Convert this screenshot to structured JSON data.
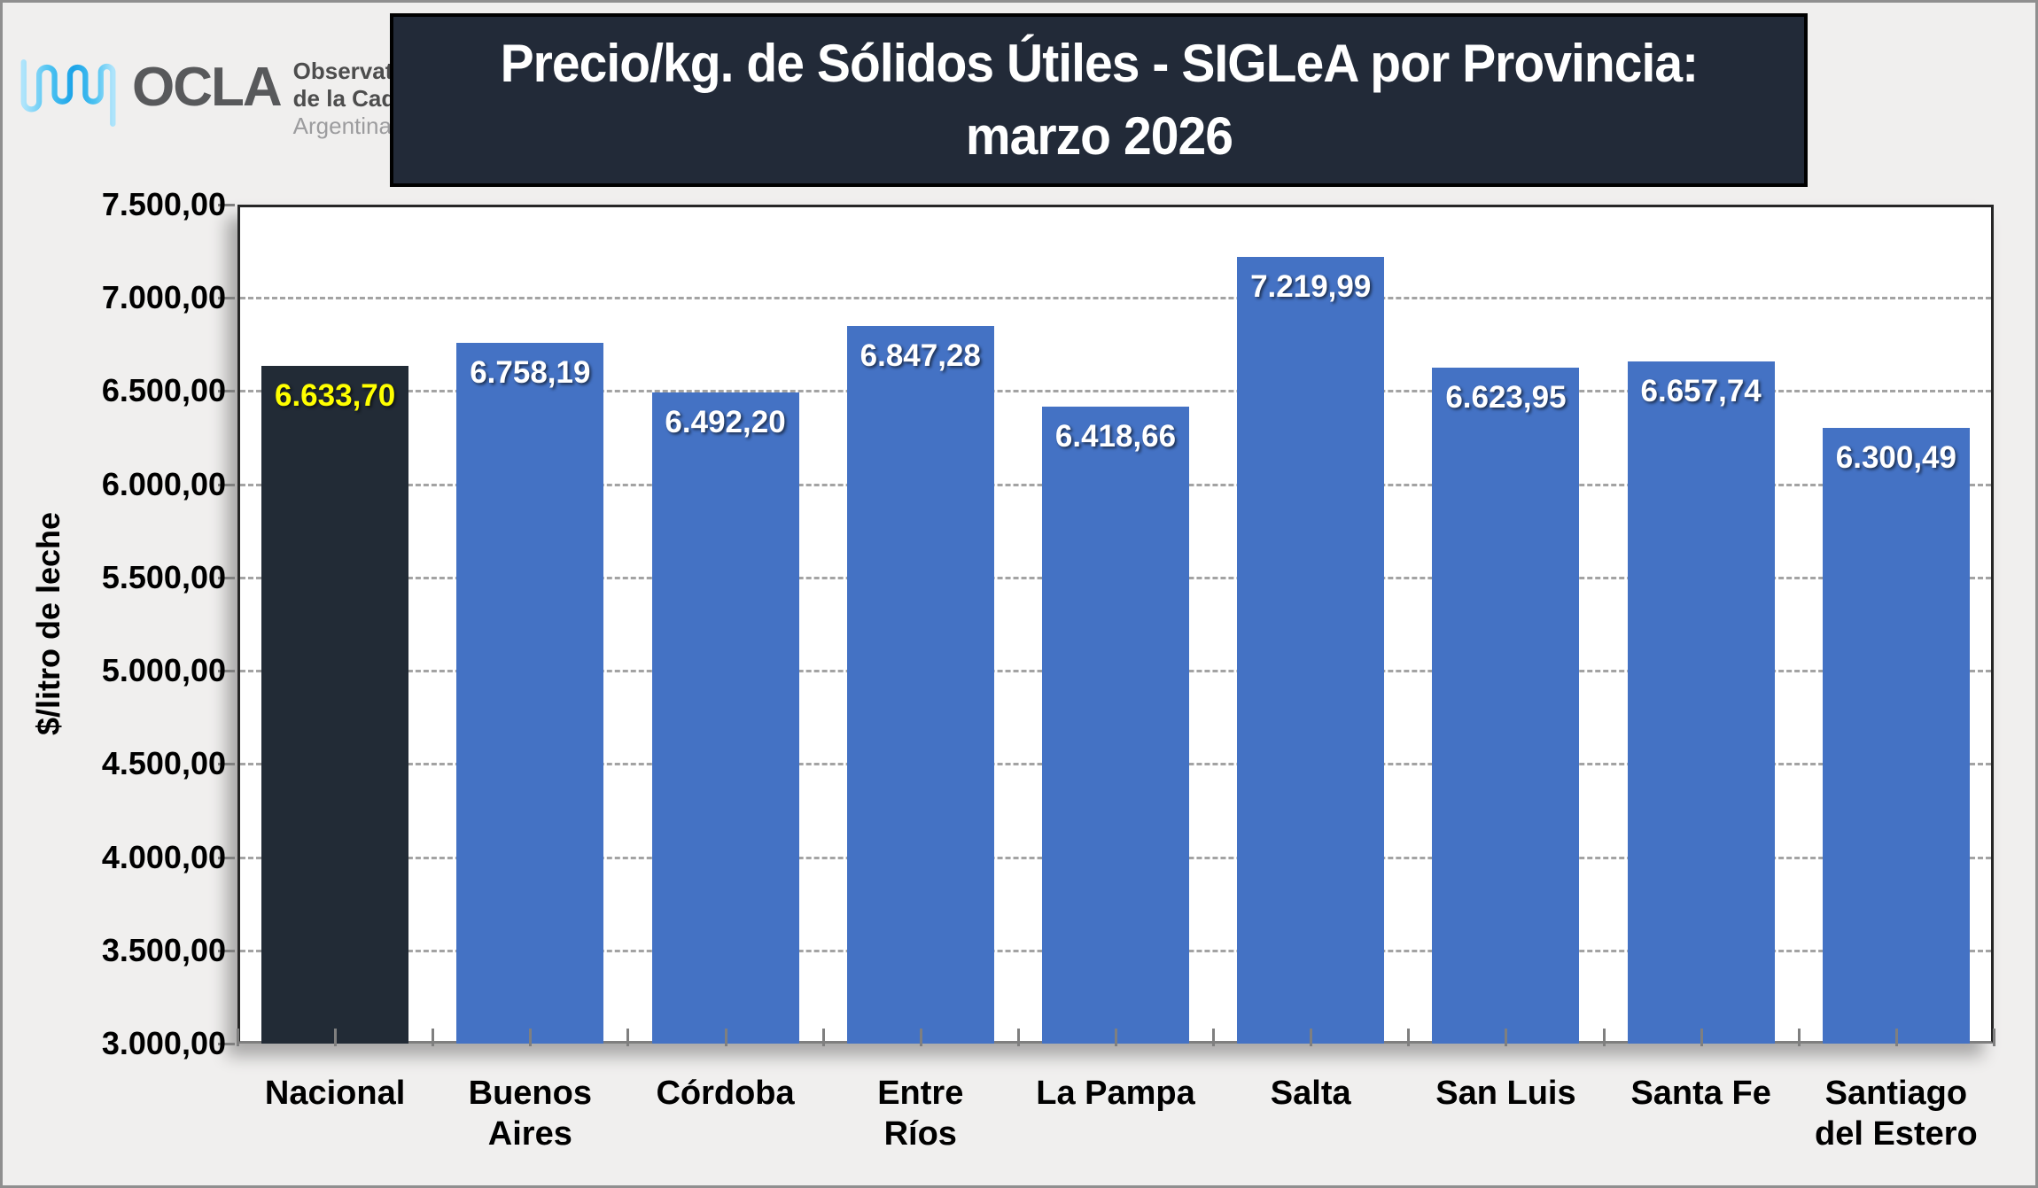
{
  "logo": {
    "brand": "OCLA",
    "icon": "milk-wave-icon",
    "tagline_line1": "Observatorio",
    "tagline_line2": "de la Cadena Láctea",
    "tagline_line3": "Argentina"
  },
  "title": {
    "line1": "Precio/kg. de Sólidos Útiles - SIGLeA por Provincia:",
    "line2": "marzo 2026",
    "bg_color": "#222a38",
    "text_color": "#ffffff"
  },
  "chart_data": {
    "type": "bar",
    "title": "Precio/kg. de Sólidos Útiles - SIGLeA por Provincia: marzo 2026",
    "xlabel": "",
    "ylabel": "$/litro de leche",
    "categories": [
      "Nacional",
      "Buenos Aires",
      "Córdoba",
      "Entre Ríos",
      "La Pampa",
      "Salta",
      "San Luis",
      "Santa Fe",
      "Santiago del Estero"
    ],
    "values": [
      6633.7,
      6758.19,
      6492.2,
      6847.28,
      6418.66,
      7219.99,
      6623.95,
      6657.74,
      6300.49
    ],
    "value_labels": [
      "6.633,70",
      "6.758,19",
      "6.492,20",
      "6.847,28",
      "6.418,66",
      "7.219,99",
      "6.623,95",
      "6.657,74",
      "6.300,49"
    ],
    "ylim": [
      3000,
      7500
    ],
    "yticks": [
      {
        "value": 7500,
        "label": "7.500,00"
      },
      {
        "value": 7000,
        "label": "7.000,00"
      },
      {
        "value": 6500,
        "label": "6.500,00"
      },
      {
        "value": 6000,
        "label": "6.000,00"
      },
      {
        "value": 5500,
        "label": "5.500,00"
      },
      {
        "value": 5000,
        "label": "5.000,00"
      },
      {
        "value": 4500,
        "label": "4.500,00"
      },
      {
        "value": 4000,
        "label": "4.000,00"
      },
      {
        "value": 3500,
        "label": "3.500,00"
      },
      {
        "value": 3000,
        "label": "3.000,00"
      }
    ],
    "grid": "horizontal-dashed",
    "legend": "none",
    "bar_color": "#4472c4",
    "highlight_index": 0,
    "highlight_color": "#222b36",
    "label_color": "#ffffff",
    "highlight_label_color": "#ffff00"
  }
}
